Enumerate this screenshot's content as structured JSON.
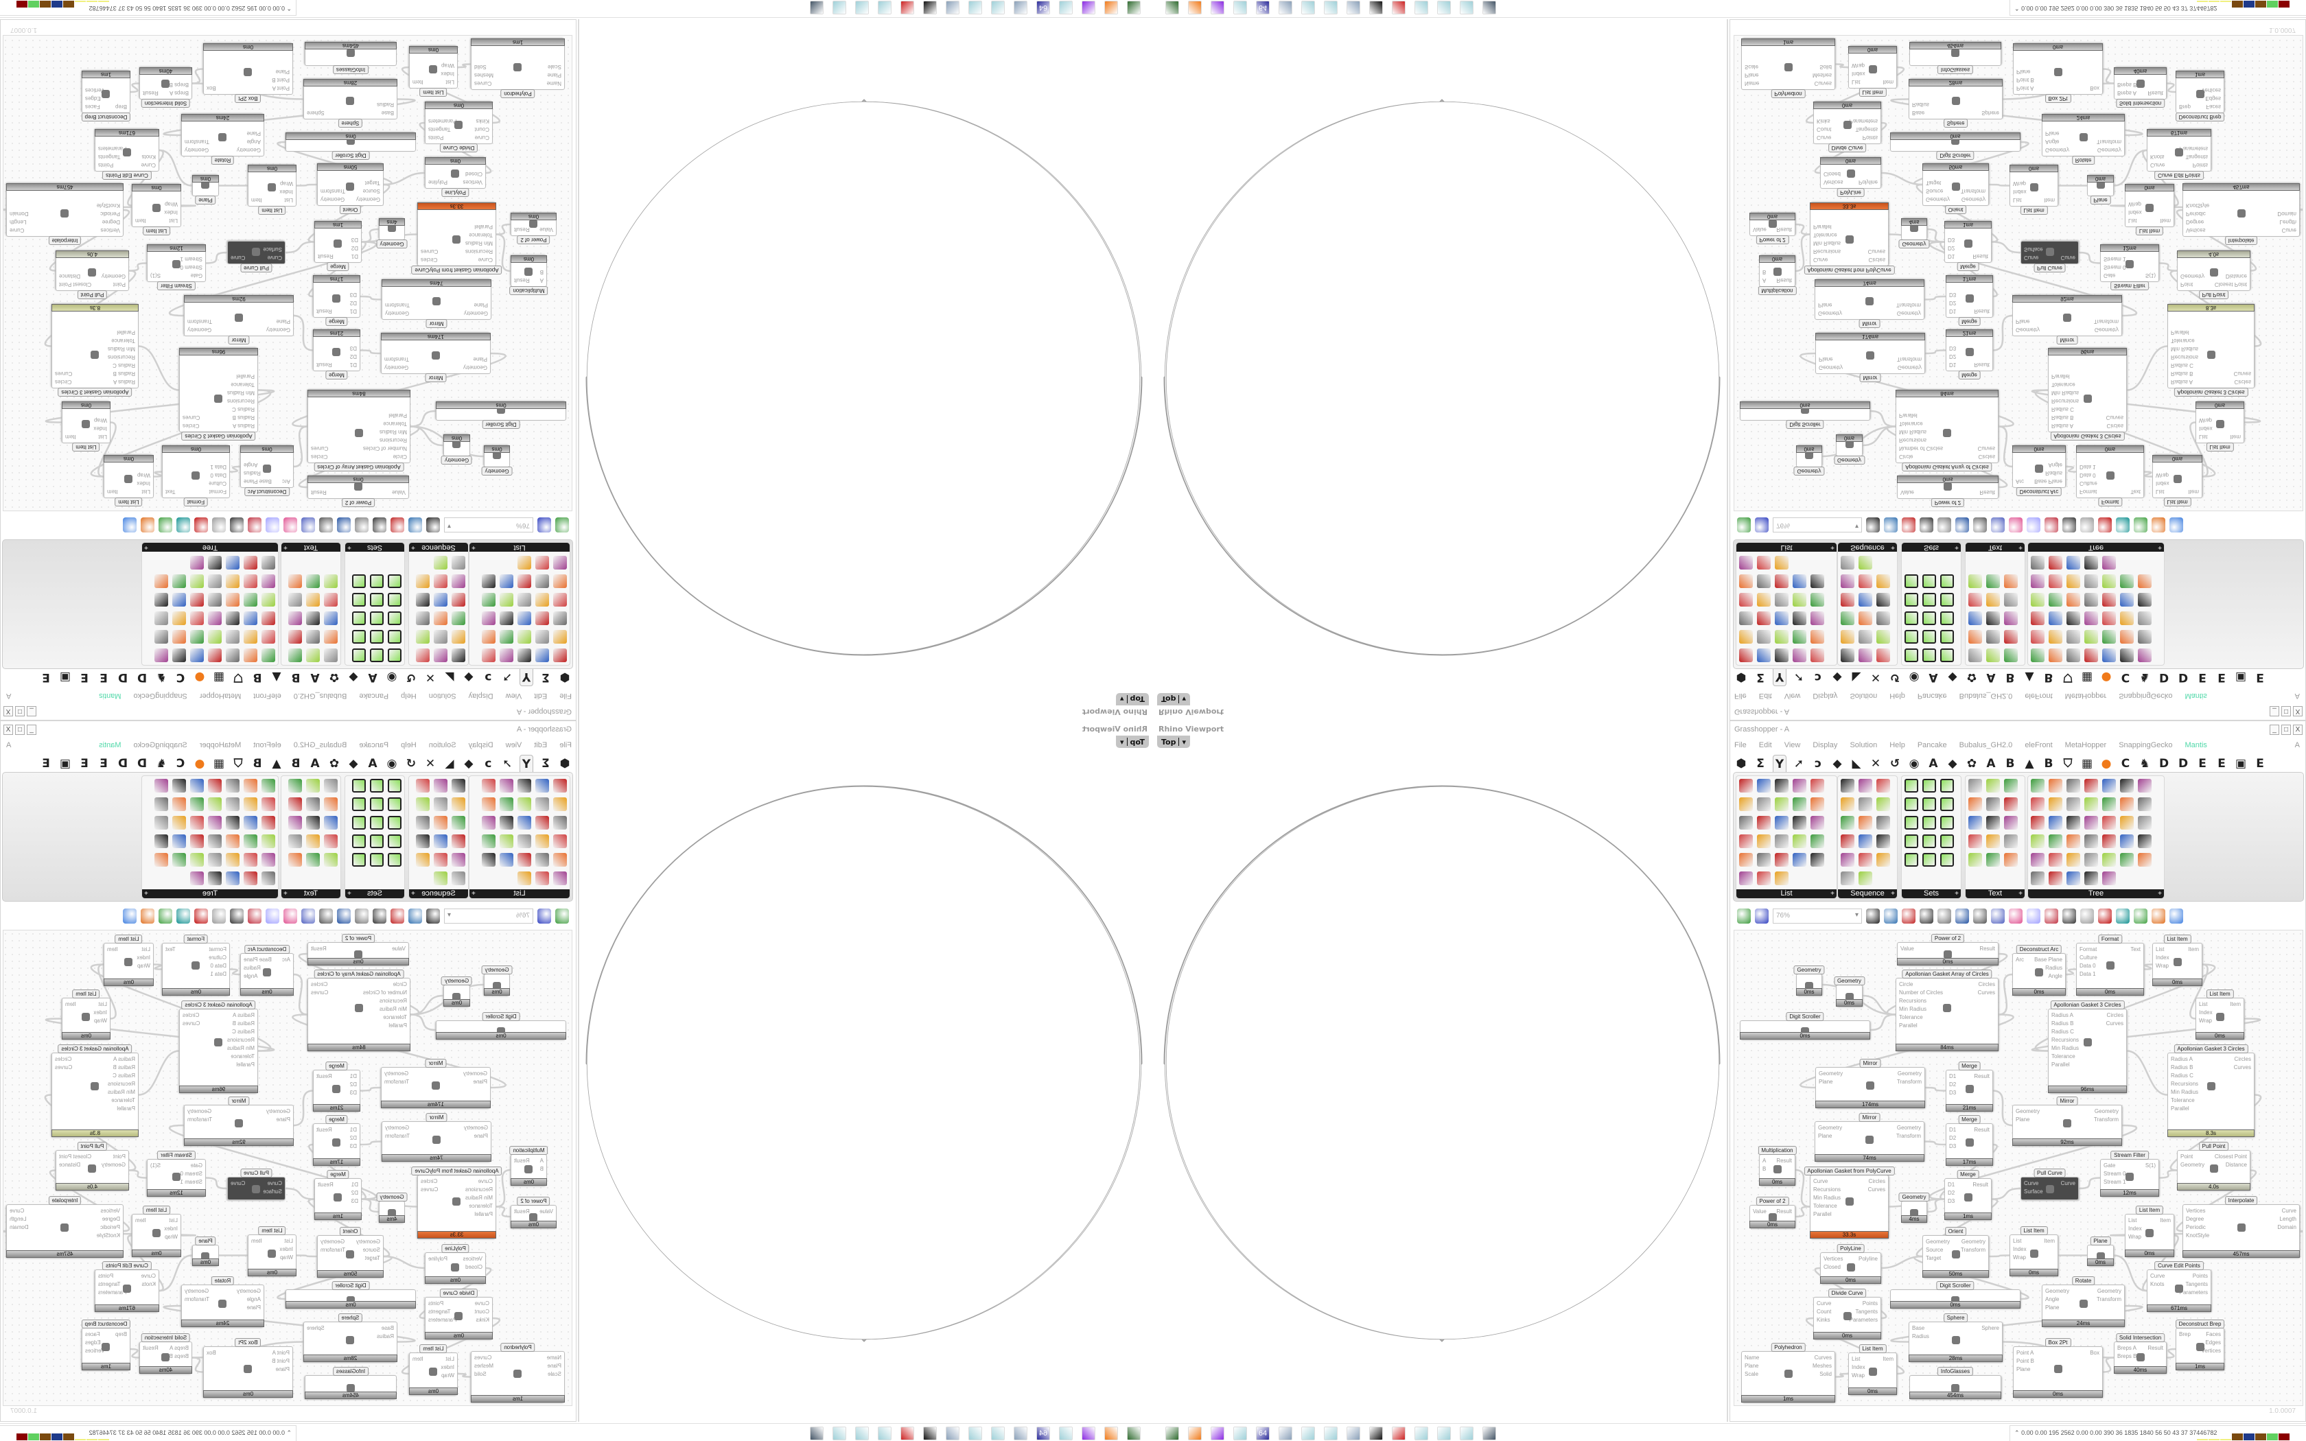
{
  "viewport": {
    "title": "Rhino Viewport",
    "view": "Top"
  },
  "window": {
    "title": "Grasshopper - A",
    "buttons": [
      "_",
      "□",
      "X"
    ]
  },
  "menu": {
    "items": [
      "File",
      "Edit",
      "View",
      "Display",
      "Solution",
      "Help",
      "Pancake",
      "Bubalus_GH2.0",
      "eleFront",
      "MetaHopper",
      "SnappingGecko",
      "Mantis"
    ],
    "right": "A",
    "accent": "#4fd8a8"
  },
  "tabs": [
    "⬢",
    "Σ",
    "Y",
    "➚",
    "ↄ",
    "◆",
    "◣",
    "✕",
    "↺",
    "◉",
    "A",
    "◆",
    "✿",
    "A",
    "B",
    "▲",
    "B",
    "⛉",
    "▦",
    "●",
    "C",
    "♞",
    "D",
    "D",
    "E",
    "E",
    "▣",
    "E"
  ],
  "ribbon": {
    "panels": [
      {
        "label": "List",
        "icons": 28
      },
      {
        "label": "Sequence",
        "icons": 17
      },
      {
        "label": "Sets",
        "icons": 15
      },
      {
        "label": "Text",
        "icons": 15
      },
      {
        "label": "Tree",
        "icons": 40
      }
    ]
  },
  "toolbar": {
    "zoom": "76%",
    "icons": [
      "new-file",
      "save",
      "zoom-extents",
      "preview",
      "sketch",
      "bug",
      "info",
      "gha",
      "doc-info",
      "search",
      "help-box",
      "bulb",
      "wires",
      "shade-1",
      "shade-2",
      "shade-3",
      "shade-4",
      "shade-5",
      "shade-6",
      "sphere"
    ]
  },
  "canvas": {
    "version": "1.0.0007",
    "nodes": [
      {
        "title": "Power of 2",
        "inputs": [
          "Value"
        ],
        "outputs": [
          "Result"
        ],
        "time": "0ms"
      },
      {
        "title": "Apollonian Gasket Array of Circles",
        "inputs": [
          "Circle",
          "Number of Circles",
          "Recursions",
          "Min Radius",
          "Tolerance",
          "Parallel"
        ],
        "outputs": [
          "Circles",
          "Curves"
        ],
        "time": "84ms"
      },
      {
        "title": "Geometry",
        "inputs": [],
        "outputs": [],
        "time": "0ms"
      },
      {
        "title": "Geometry",
        "inputs": [],
        "outputs": [],
        "time": "0ms"
      },
      {
        "title": "Digit Scroller",
        "inputs": [],
        "outputs": [],
        "time": "0ms"
      },
      {
        "title": "Deconstruct Arc",
        "inputs": [
          "Arc"
        ],
        "outputs": [
          "Base Plane",
          "Radius",
          "Angle"
        ],
        "time": "0ms"
      },
      {
        "title": "Format",
        "inputs": [
          "Format",
          "Culture",
          "Data 0",
          "Data 1"
        ],
        "outputs": [
          "Text"
        ],
        "time": "0ms"
      },
      {
        "title": "List Item",
        "inputs": [
          "List",
          "Index",
          "Wrap"
        ],
        "outputs": [
          "Item"
        ],
        "time": "0ms"
      },
      {
        "title": "Apollonian Gasket 3 Circles",
        "inputs": [
          "Radius A",
          "Radius B",
          "Radius C",
          "Recursions",
          "Min Radius",
          "Tolerance",
          "Parallel"
        ],
        "outputs": [
          "Circles",
          "Curves"
        ],
        "time": "96ms"
      },
      {
        "title": "List Item",
        "inputs": [
          "List",
          "Index",
          "Wrap"
        ],
        "outputs": [
          "Item"
        ],
        "time": "0ms"
      },
      {
        "title": "Apollonian Gasket 3 Circles",
        "inputs": [
          "Radius A",
          "Radius B",
          "Radius C",
          "Recursions",
          "Min Radius",
          "Tolerance",
          "Parallel"
        ],
        "outputs": [
          "Circles",
          "Curves"
        ],
        "time": "8.3s",
        "state": "olive"
      },
      {
        "title": "Mirror",
        "inputs": [
          "Geometry",
          "Plane"
        ],
        "outputs": [
          "Geometry",
          "Transform"
        ],
        "time": "174ms"
      },
      {
        "title": "Merge",
        "inputs": [
          "D1",
          "D2",
          "D3"
        ],
        "outputs": [
          "Result"
        ],
        "time": "21ms"
      },
      {
        "title": "Mirror",
        "inputs": [
          "Geometry",
          "Plane"
        ],
        "outputs": [
          "Geometry",
          "Transform"
        ],
        "time": "74ms"
      },
      {
        "title": "Merge",
        "inputs": [
          "D1",
          "D2",
          "D3"
        ],
        "outputs": [
          "Result"
        ],
        "time": "17ms"
      },
      {
        "title": "Mirror",
        "inputs": [
          "Geometry",
          "Plane"
        ],
        "outputs": [
          "Geometry",
          "Transform"
        ],
        "time": "92ms"
      },
      {
        "title": "Multiplication",
        "inputs": [
          "A",
          "B"
        ],
        "outputs": [
          "Result"
        ],
        "time": "0ms"
      },
      {
        "title": "Apollonian Gasket from PolyCurve",
        "inputs": [
          "Curve",
          "Recursions",
          "Min Radius",
          "Tolerance",
          "Parallel"
        ],
        "outputs": [
          "Circles",
          "Curves"
        ],
        "time": "33.3s",
        "state": "orange"
      },
      {
        "title": "Merge",
        "inputs": [
          "D1",
          "D2",
          "D3"
        ],
        "outputs": [
          "Result"
        ],
        "time": "1ms"
      },
      {
        "title": "Pull Curve",
        "inputs": [
          "Curve",
          "Surface"
        ],
        "outputs": [
          "Curve"
        ],
        "state": "dark"
      },
      {
        "title": "Stream Filter",
        "inputs": [
          "Gate",
          "Stream 0",
          "Stream 1"
        ],
        "outputs": [
          "S(1)"
        ],
        "time": "12ms"
      },
      {
        "title": "Pull Point",
        "inputs": [
          "Point",
          "Geometry"
        ],
        "outputs": [
          "Closest Point",
          "Distance"
        ],
        "time": "4.0s",
        "state": "gray4"
      },
      {
        "title": "Power of 2",
        "inputs": [
          "Value"
        ],
        "outputs": [
          "Result"
        ],
        "time": "0ms"
      },
      {
        "title": "Geometry",
        "inputs": [],
        "outputs": [],
        "time": "4ms"
      },
      {
        "title": "Interpolate",
        "inputs": [
          "Vertices",
          "Degree",
          "Periodic",
          "KnotStyle"
        ],
        "outputs": [
          "Curve",
          "Length",
          "Domain"
        ],
        "time": "457ms"
      },
      {
        "title": "List Item",
        "inputs": [
          "List",
          "Index",
          "Wrap"
        ],
        "outputs": [
          "Item"
        ],
        "time": "0ms"
      },
      {
        "title": "Orient",
        "inputs": [
          "Geometry",
          "Source",
          "Target"
        ],
        "outputs": [
          "Geometry",
          "Transform"
        ],
        "time": "50ms"
      },
      {
        "title": "List Item",
        "inputs": [
          "List",
          "Index",
          "Wrap"
        ],
        "outputs": [
          "Item"
        ],
        "time": "0ms"
      },
      {
        "title": "Plane",
        "inputs": [],
        "outputs": [],
        "time": "0ms"
      },
      {
        "title": "PolyLine",
        "inputs": [
          "Vertices",
          "Closed"
        ],
        "outputs": [
          "Polyline"
        ],
        "time": "0ms"
      },
      {
        "title": "Curve Edit Points",
        "inputs": [
          "Curve",
          "Knots"
        ],
        "outputs": [
          "Points",
          "Tangents",
          "Parameters"
        ],
        "time": "671ms"
      },
      {
        "title": "Rotate",
        "inputs": [
          "Geometry",
          "Angle",
          "Plane"
        ],
        "outputs": [
          "Geometry",
          "Transform"
        ],
        "time": "24ms"
      },
      {
        "title": "Digit Scroller",
        "inputs": [],
        "outputs": [],
        "time": "0ms"
      },
      {
        "title": "Divide Curve",
        "inputs": [
          "Curve",
          "Count",
          "Kinks"
        ],
        "outputs": [
          "Points",
          "Tangents",
          "Parameters"
        ],
        "time": "0ms"
      },
      {
        "title": "Sphere",
        "inputs": [
          "Base",
          "Radius"
        ],
        "outputs": [
          "Sphere"
        ],
        "time": "28ms"
      },
      {
        "title": "Deconstruct Brep",
        "inputs": [
          "Brep"
        ],
        "outputs": [
          "Faces",
          "Edges",
          "Vertices"
        ],
        "time": "1ms"
      },
      {
        "title": "Solid Intersection",
        "inputs": [
          "Breps A",
          "Breps B"
        ],
        "outputs": [
          "Result"
        ],
        "time": "40ms"
      },
      {
        "title": "Box 2Pt",
        "inputs": [
          "Point A",
          "Point B",
          "Plane"
        ],
        "outputs": [
          "Box"
        ],
        "time": "0ms"
      },
      {
        "title": "Polyhedron",
        "inputs": [
          "Name",
          "Plane",
          "Scale"
        ],
        "outputs": [
          "Curves",
          "Meshes",
          "Solid"
        ],
        "time": "1ms"
      },
      {
        "title": "List Item",
        "inputs": [
          "List",
          "Index",
          "Wrap"
        ],
        "outputs": [
          "Item"
        ],
        "time": "0ms"
      },
      {
        "title": "InfoGlasses",
        "inputs": [],
        "outputs": [],
        "time": "454ms"
      }
    ]
  },
  "taskbar": {
    "apps": [
      {
        "icon": "terminal-icon",
        "color": "#2f6b2f"
      },
      {
        "icon": "firefox-icon",
        "color": "#f07a1a"
      },
      {
        "icon": "purple-app-icon",
        "color": "#8a2be2"
      },
      {
        "icon": "notepad-icon",
        "color": "#9fd0d8"
      },
      {
        "icon": "floppy-icon",
        "color": "#2a2a9a",
        "text": "64"
      },
      {
        "icon": "document-icon",
        "color": "#8aa0b8"
      },
      {
        "icon": "notepad-icon",
        "color": "#9fd0d8"
      },
      {
        "icon": "notepad-icon",
        "color": "#9fd0d8"
      },
      {
        "icon": "document-icon",
        "color": "#8aa0b8"
      },
      {
        "icon": "cat-icon",
        "color": "#111111"
      },
      {
        "icon": "red-app-icon",
        "color": "#cc2222"
      },
      {
        "icon": "notepad-icon",
        "color": "#9fd0d8"
      },
      {
        "icon": "notepad-icon",
        "color": "#9fd0d8"
      },
      {
        "icon": "notepad-icon",
        "color": "#9fd0d8"
      },
      {
        "icon": "computer-icon",
        "color": "#445566"
      }
    ],
    "tray": "0.00 0.00 195 2562 0.00 0.00 390 36 1835 1840 56 50 43 37 37446782",
    "tray_colors": [
      "#f0f080",
      "#f0f080",
      "#f0f080",
      "#7a4a10",
      "#1f3a8a",
      "#7a4a10",
      "#60d060",
      "#8a0000"
    ]
  }
}
